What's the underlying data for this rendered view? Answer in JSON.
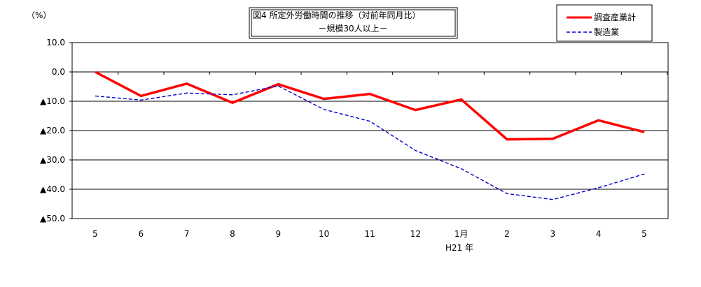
{
  "chart_data": {
    "type": "line",
    "title": "図4 所定外労働時間の推移（対前年同月比）",
    "subtitle": "－規模30人以上－",
    "ylabel": "（%）",
    "xlabel": "",
    "ylim": [
      -50,
      10
    ],
    "y_ticks": [
      {
        "value": 10,
        "label": "10.0"
      },
      {
        "value": 0,
        "label": "0.0"
      },
      {
        "value": -10,
        "label": "▲10.0"
      },
      {
        "value": -20,
        "label": "▲20.0"
      },
      {
        "value": -30,
        "label": "▲30.0"
      },
      {
        "value": -40,
        "label": "▲40.0"
      },
      {
        "value": -50,
        "label": "▲50.0"
      }
    ],
    "categories": [
      "5",
      "6",
      "7",
      "8",
      "9",
      "10",
      "11",
      "12",
      "1月",
      "2",
      "3",
      "4",
      "5"
    ],
    "year_label": "H21 年",
    "grid": true,
    "legend_position": "top-right",
    "series": [
      {
        "name": "調査産業計",
        "color": "#ff0000",
        "style": "solid",
        "values": [
          0.0,
          -8.2,
          -4.0,
          -10.5,
          -4.2,
          -9.2,
          -7.5,
          -13.0,
          -9.4,
          -23.0,
          -22.8,
          -16.5,
          -20.5
        ]
      },
      {
        "name": "製造業",
        "color": "#0000cc",
        "style": "dashed",
        "values": [
          -8.2,
          -9.6,
          -7.2,
          -7.8,
          -4.8,
          -12.8,
          -16.8,
          -26.8,
          -33.0,
          -41.5,
          -43.5,
          -39.5,
          -34.8
        ]
      }
    ]
  }
}
